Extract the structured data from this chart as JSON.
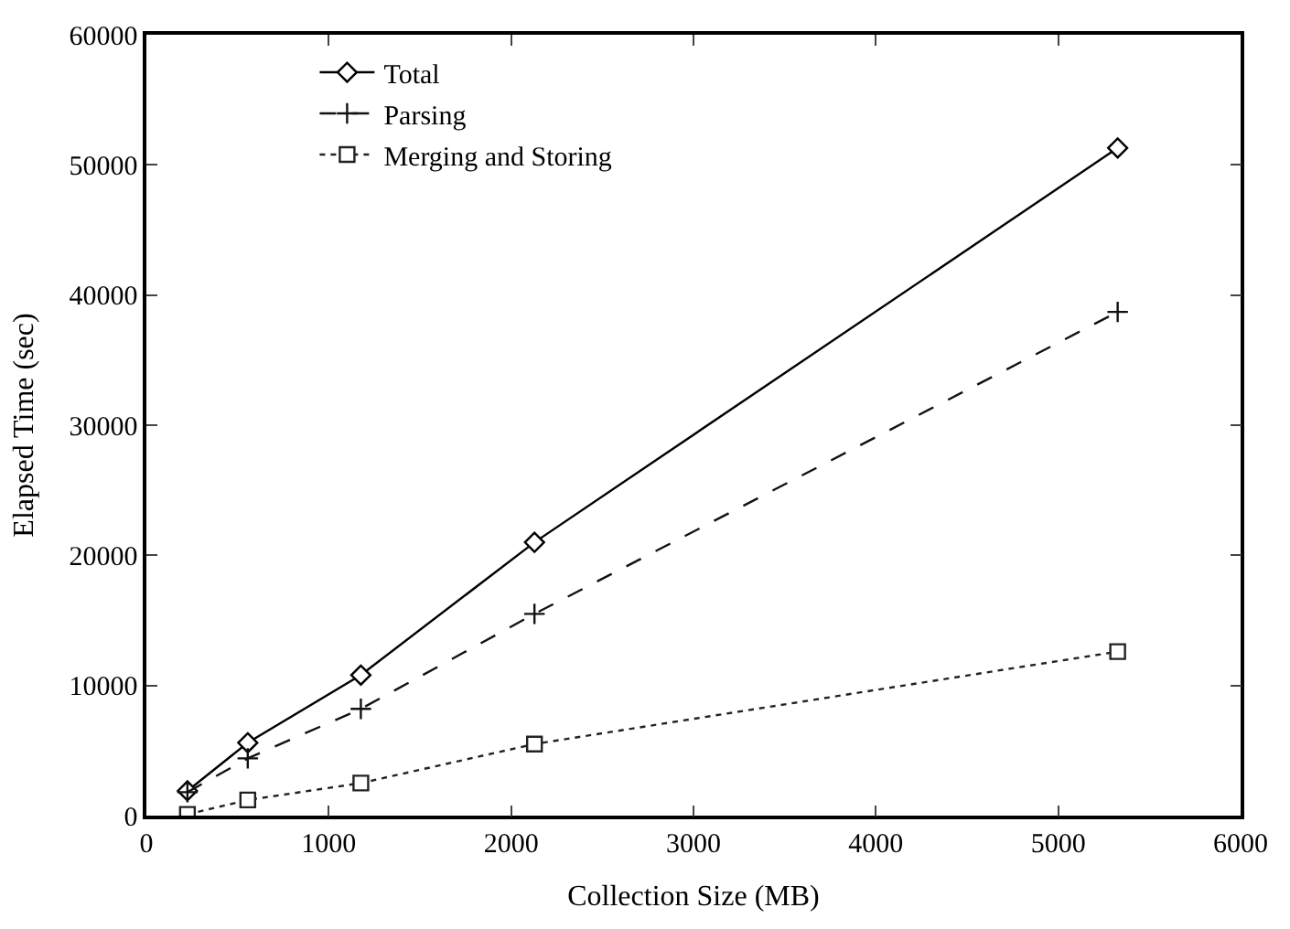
{
  "chart_data": {
    "type": "line",
    "xlabel": "Collection Size (MB)",
    "ylabel": "Elapsed Time (sec)",
    "x": [
      225,
      556,
      1176,
      2128,
      5326
    ],
    "series": [
      {
        "name": "Total",
        "color": "#000000",
        "values": [
          1900,
          5600,
          10800,
          21000,
          51300
        ],
        "marker": "diamond",
        "line_style": "solid"
      },
      {
        "name": "Parsing",
        "color": "#111111",
        "values": [
          1800,
          4400,
          8200,
          15500,
          38700
        ],
        "marker": "cross",
        "line_style": "dashed"
      },
      {
        "name": "Merging and Storing",
        "color": "#222222",
        "values": [
          100,
          1200,
          2500,
          5500,
          12600
        ],
        "marker": "square",
        "line_style": "dotted"
      }
    ],
    "xlim": [
      0,
      6000
    ],
    "xticks": [
      0,
      1000,
      2000,
      3000,
      4000,
      5000,
      6000
    ],
    "ylim": [
      0,
      60000
    ],
    "yticks": [
      0,
      10000,
      20000,
      30000,
      40000,
      50000,
      60000
    ],
    "grid": false,
    "legend": "top left"
  }
}
